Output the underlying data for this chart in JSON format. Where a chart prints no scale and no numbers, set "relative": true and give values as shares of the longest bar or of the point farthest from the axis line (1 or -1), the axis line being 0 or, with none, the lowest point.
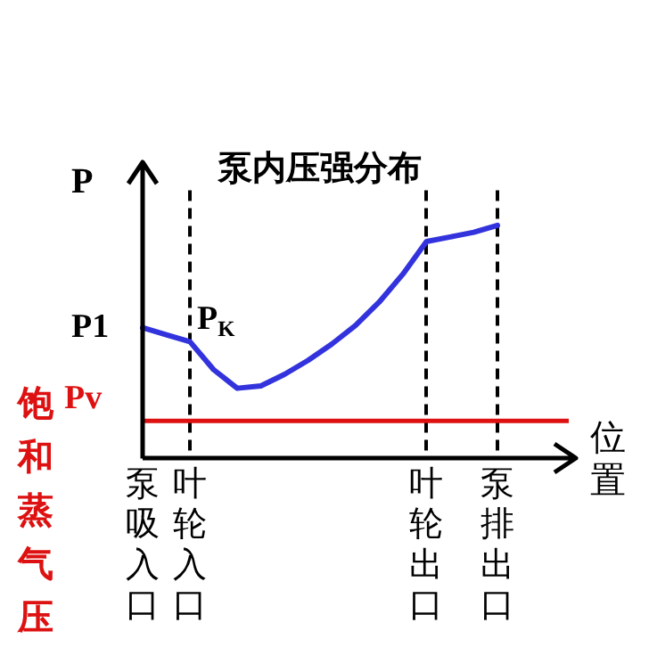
{
  "chart_data": {
    "type": "line",
    "title": "泵内压强分布",
    "xlabel": "位置",
    "ylabel": "P",
    "relative": true,
    "categories": [
      "泵吸入口",
      null,
      "叶轮入口",
      null,
      null,
      null,
      null,
      null,
      null,
      null,
      null,
      null,
      "叶轮出口",
      null,
      null,
      "泵排出口"
    ],
    "series": [
      {
        "color": "#3333dd",
        "values": [
          0.56,
          0.53,
          0.5,
          0.38,
          0.3,
          0.31,
          0.36,
          0.42,
          0.49,
          0.57,
          0.67,
          0.79,
          0.93,
          0.95,
          0.97,
          1
        ]
      }
    ],
    "grid": "x",
    "legend": false,
    "marker": "none",
    "line_style": "solid",
    "ref_lines": [
      {
        "axis": "y",
        "value": 0.16,
        "label": "Pv",
        "color": "#dd1111"
      }
    ],
    "annotations": [
      {
        "text": "P1",
        "x": "泵吸入口",
        "y": 0.56
      },
      {
        "text": "P$_{K}$",
        "x": "叶轮入口",
        "y": 0.5
      },
      "饱和蒸气压"
    ]
  }
}
